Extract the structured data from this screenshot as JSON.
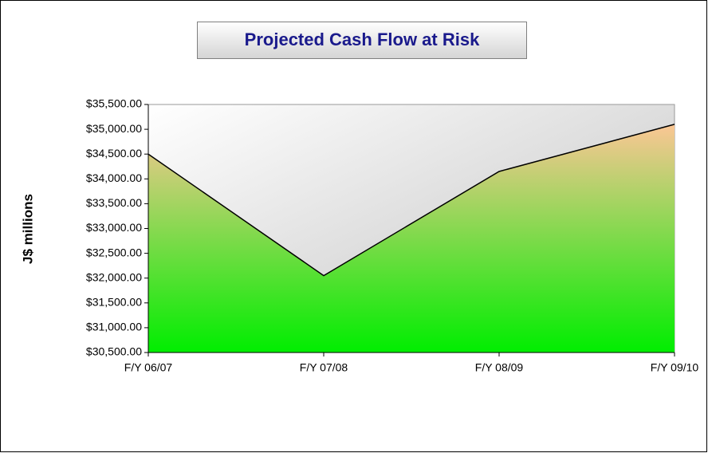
{
  "chart_data": {
    "type": "area",
    "title": "Projected Cash Flow at Risk",
    "y_label": "J$ millions",
    "categories": [
      "F/Y 06/07",
      "F/Y 07/08",
      "F/Y 08/09",
      "F/Y 09/10"
    ],
    "values": [
      34500,
      32050,
      34150,
      35100
    ],
    "line_color": "#000000",
    "fill_gradient": [
      "#fbc695",
      "#00ee00"
    ],
    "ylim": [
      30500,
      35500
    ],
    "yticks": [
      {
        "value": 30500,
        "label": "$30,500.00"
      },
      {
        "value": 31000,
        "label": "$31,000.00"
      },
      {
        "value": 31500,
        "label": "$31,500.00"
      },
      {
        "value": 32000,
        "label": "$32,000.00"
      },
      {
        "value": 32500,
        "label": "$32,500.00"
      },
      {
        "value": 33000,
        "label": "$33,000.00"
      },
      {
        "value": 33500,
        "label": "$33,500.00"
      },
      {
        "value": 34000,
        "label": "$34,000.00"
      },
      {
        "value": 34500,
        "label": "$34,500.00"
      },
      {
        "value": 35000,
        "label": "$35,000.00"
      },
      {
        "value": 35500,
        "label": "$35,500.00"
      }
    ],
    "grid": false
  }
}
